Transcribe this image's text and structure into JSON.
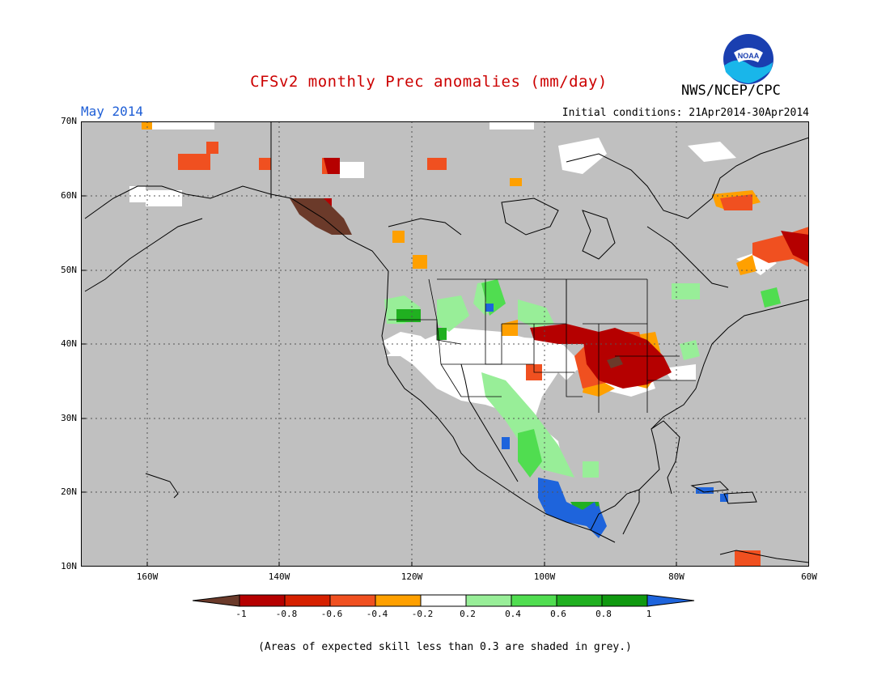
{
  "header": {
    "title": "CFSv2 monthly Prec anomalies (mm/day)",
    "agency": "NWS/NCEP/CPC",
    "month": "May 2014",
    "initial_conditions": "Initial conditions: 21Apr2014-30Apr2014",
    "logo_text": "NOAA"
  },
  "map": {
    "lat_labels": [
      "70N",
      "60N",
      "50N",
      "40N",
      "30N",
      "20N",
      "10N"
    ],
    "lon_labels": [
      "160W",
      "140W",
      "120W",
      "100W",
      "80W",
      "60W"
    ]
  },
  "legend": {
    "labels": [
      "-1",
      "-0.8",
      "-0.6",
      "-0.4",
      "-0.2",
      "0.2",
      "0.4",
      "0.6",
      "0.8",
      "1"
    ],
    "colors": [
      "#6b3a2a",
      "#b50000",
      "#d62000",
      "#f05020",
      "#ffa000",
      "#ffffff",
      "#98ee98",
      "#50dd50",
      "#20b020",
      "#109910",
      "#1e64dc"
    ]
  },
  "footnote": "(Areas of expected skill less than 0.3 are shaded in grey.)",
  "colors": {
    "grey_skill": "#c0c0c0",
    "title_red": "#cc0000",
    "month_blue": "#1f5fd6"
  }
}
